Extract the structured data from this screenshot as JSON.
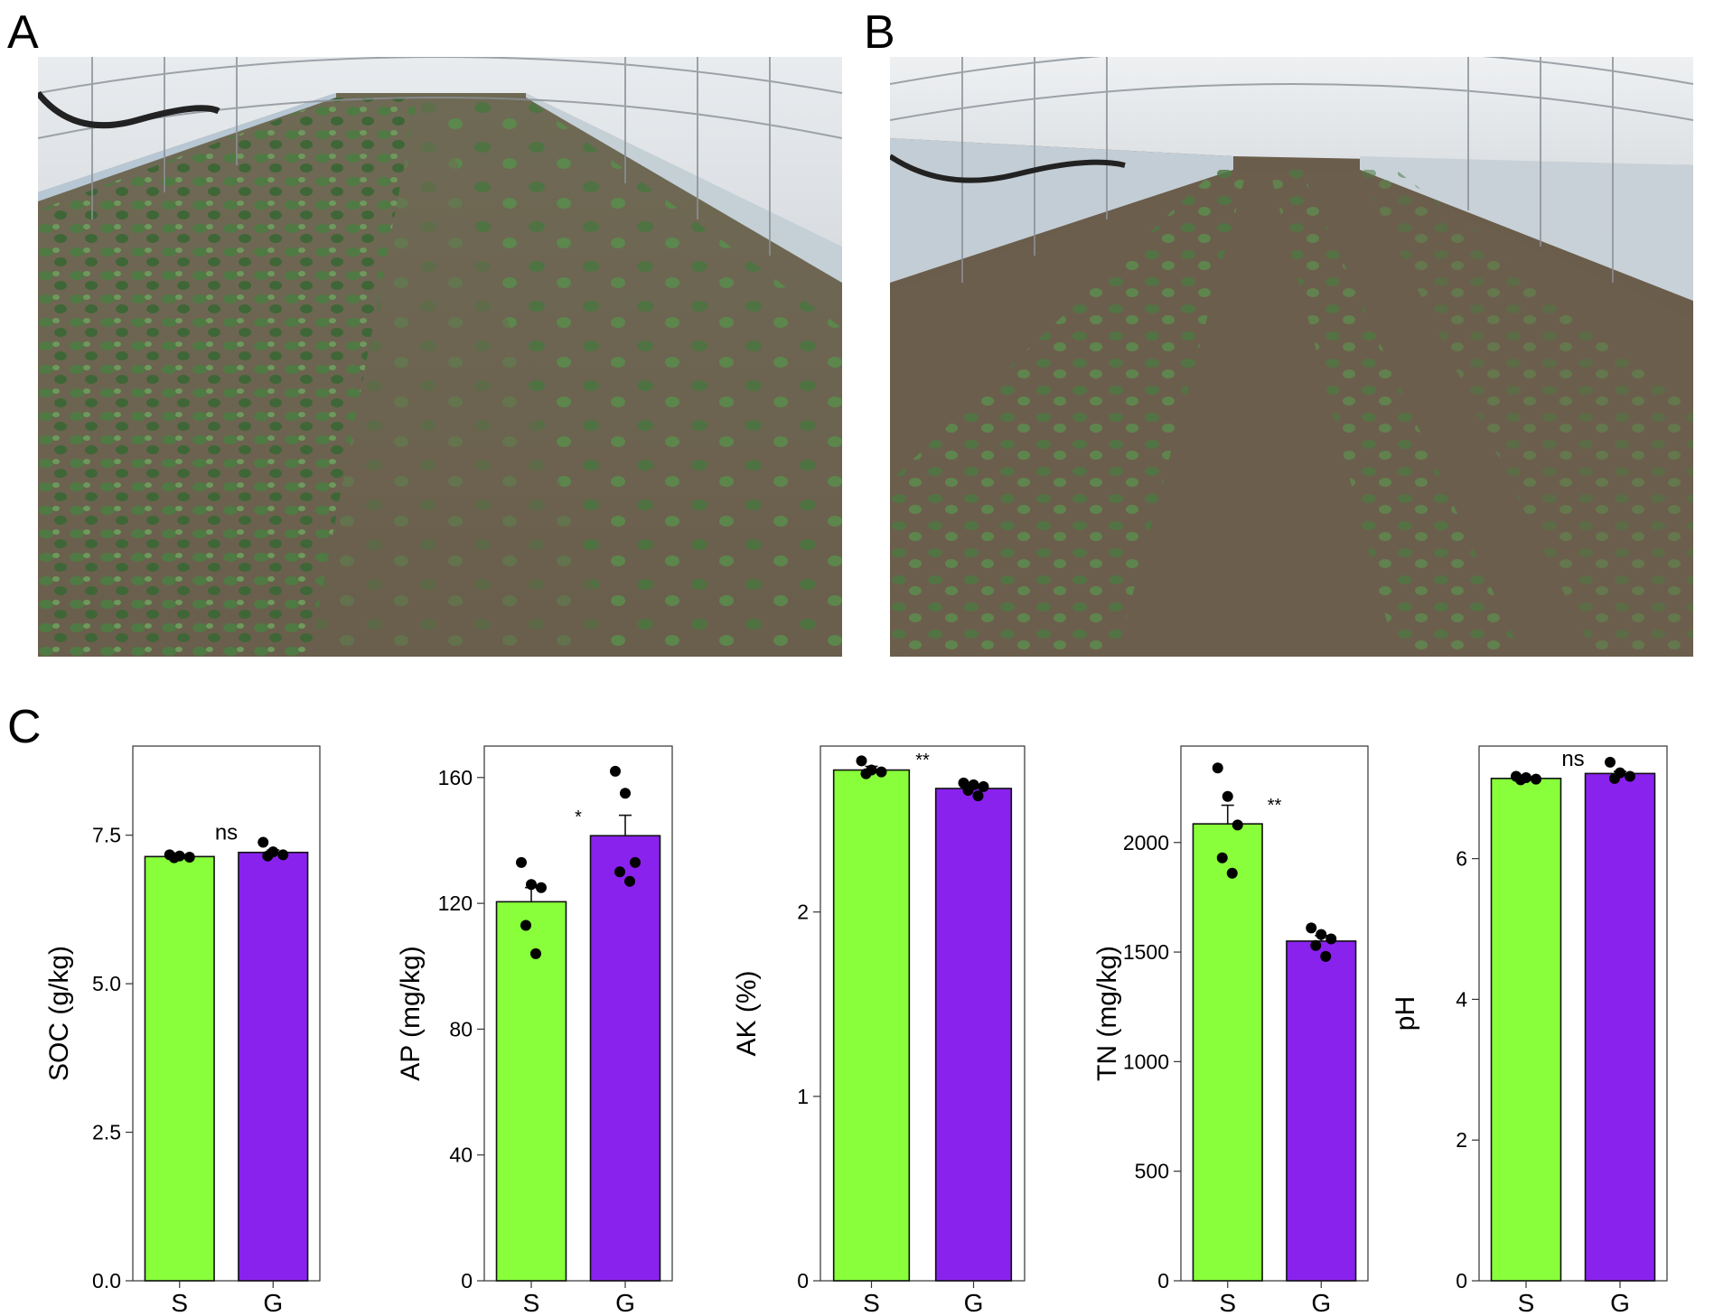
{
  "panels": {
    "a_label": "A",
    "b_label": "B",
    "c_label": "C"
  },
  "photos": {
    "a_icon": "greenhouse-photo-dense-seedlings",
    "b_icon": "greenhouse-photo-sparse-rows"
  },
  "colors": {
    "S": "#88ff3a",
    "G": "#8a22ee"
  },
  "chart_data": [
    {
      "type": "bar",
      "categories": [
        "S",
        "G"
      ],
      "values": [
        7.14,
        7.21
      ],
      "errors": [
        0.03,
        0.04
      ],
      "points": [
        [
          7.17,
          7.15,
          7.13,
          7.12
        ],
        [
          7.38,
          7.22,
          7.17,
          7.15
        ]
      ],
      "ylabel": "SOC (g/kg)",
      "ylim": [
        0,
        9
      ],
      "yticks": [
        "0.0",
        "2.5",
        "5.0",
        "7.5"
      ],
      "significance": "ns"
    },
    {
      "type": "bar",
      "categories": [
        "S",
        "G"
      ],
      "values": [
        120.5,
        141.5
      ],
      "errors": [
        4.5,
        6.5
      ],
      "points": [
        [
          133,
          126,
          125,
          113,
          104
        ],
        [
          162,
          155,
          133,
          130,
          127
        ]
      ],
      "ylabel": "AP (mg/kg)",
      "ylim": [
        0,
        170
      ],
      "yticks": [
        "0",
        "40",
        "80",
        "120",
        "160"
      ],
      "significance": "*"
    },
    {
      "type": "bar",
      "categories": [
        "S",
        "G"
      ],
      "values": [
        2.77,
        2.67
      ],
      "errors": [
        0.02,
        0.02
      ],
      "points": [
        [
          2.82,
          2.77,
          2.76,
          2.75
        ],
        [
          2.7,
          2.69,
          2.68,
          2.66,
          2.63
        ]
      ],
      "ylabel": "AK (%)",
      "ylim": [
        0,
        2.9
      ],
      "yticks": [
        "0",
        "1",
        "2"
      ],
      "significance": "**"
    },
    {
      "type": "bar",
      "categories": [
        "S",
        "G"
      ],
      "values": [
        2085,
        1550
      ],
      "errors": [
        85,
        25
      ],
      "points": [
        [
          2340,
          2210,
          2080,
          1930,
          1860
        ],
        [
          1610,
          1580,
          1560,
          1530,
          1480
        ]
      ],
      "ylabel": "TN (mg/kg)",
      "ylim": [
        0,
        2440
      ],
      "yticks": [
        "0",
        "500",
        "1000",
        "1500",
        "2000"
      ],
      "significance": "**"
    },
    {
      "type": "bar",
      "categories": [
        "S",
        "G"
      ],
      "values": [
        7.14,
        7.21
      ],
      "errors": [
        0.02,
        0.03
      ],
      "points": [
        [
          7.17,
          7.15,
          7.13,
          7.12
        ],
        [
          7.37,
          7.22,
          7.17,
          7.14
        ]
      ],
      "ylabel": "pH",
      "ylim": [
        0,
        7.6
      ],
      "yticks": [
        "0",
        "2",
        "4",
        "6"
      ],
      "significance": "ns"
    }
  ]
}
